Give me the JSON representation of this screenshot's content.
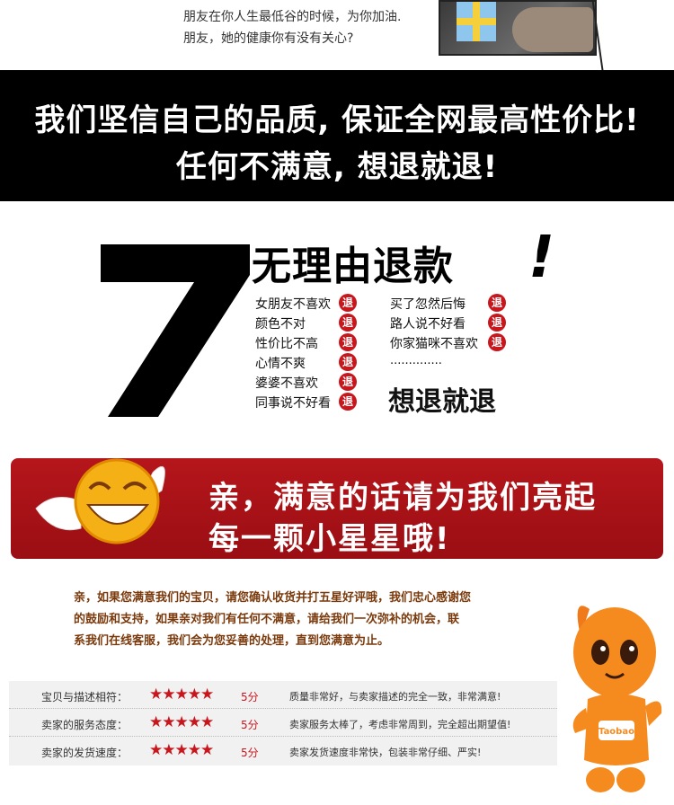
{
  "top": {
    "line1": "朋友在你人生最低谷的时候，为你加油.",
    "line2": "朋友，她的健康你有没有关心?"
  },
  "banner": {
    "line1": "我们坚信自己的品质, 保证全网最高性价比!",
    "line2": "任何不满意, 想退就退!"
  },
  "seven": {
    "number": "7",
    "title": "无理由退款",
    "exclaim": "!",
    "tui": "退",
    "left_reasons": [
      "女朋友不喜欢",
      "颜色不对",
      "性价比不高",
      "心情不爽",
      "婆婆不喜欢",
      "同事说不好看"
    ],
    "right_reasons": [
      "买了忽然后悔",
      "路人说不好看",
      "你家猫咪不喜欢"
    ],
    "dots": "..............",
    "slogan": "想退就退"
  },
  "star_banner": {
    "line1": "亲，满意的话请为我们亮起",
    "line2": "每一颗小星星哦!"
  },
  "message": {
    "line1": "亲，如果您满意我们的宝贝，请您确认收货并打五星好评哦，我们忠心感谢您",
    "line2": "的鼓励和支持，如果亲对我们有任何不满意，请给我们一次弥补的机会，联",
    "line3": "系我们在线客服，我们会为您妥善的处理，直到您满意为止。"
  },
  "ratings": [
    {
      "label": "宝贝与描述相符：",
      "stars": "★★★★★",
      "score": "5分",
      "comment": "质量非常好，与卖家描述的完全一致，非常满意!"
    },
    {
      "label": "卖家的服务态度：",
      "stars": "★★★★★",
      "score": "5分",
      "comment": "卖家服务太棒了，考虑非常周到，完全超出期望值!"
    },
    {
      "label": "卖家的发货速度：",
      "stars": "★★★★★",
      "score": "5分",
      "comment": "卖家发货速度非常快，包装非常仔细、严实!"
    }
  ],
  "mascot": {
    "label": "Taobao"
  },
  "colors": {
    "red": "#c8161d",
    "banner_black": "#000000",
    "message_brown": "#7a3a0c"
  }
}
